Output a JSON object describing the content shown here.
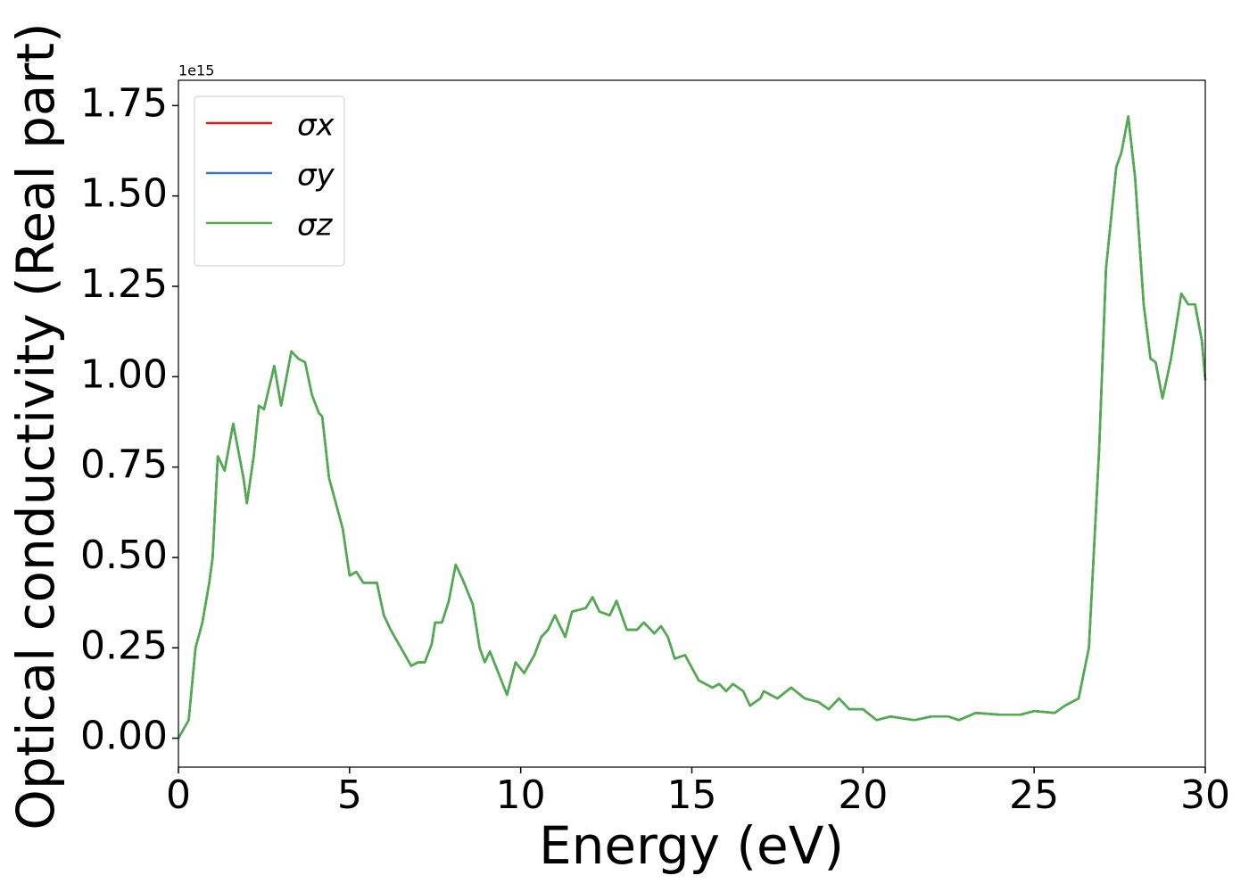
{
  "chart_data": {
    "type": "line",
    "xlabel": "Energy (eV)",
    "ylabel": "Optical conductivity (Real part)",
    "offset_text": "1e15",
    "x": [
      0,
      0.3,
      0.5,
      0.7,
      0.9,
      1.0,
      1.15,
      1.35,
      1.6,
      1.9,
      2.0,
      2.2,
      2.35,
      2.5,
      2.8,
      3.0,
      3.3,
      3.5,
      3.7,
      3.9,
      4.1,
      4.2,
      4.4,
      4.8,
      5.0,
      5.2,
      5.4,
      5.6,
      5.8,
      6.0,
      6.2,
      6.5,
      6.8,
      7.0,
      7.2,
      7.4,
      7.5,
      7.7,
      7.9,
      8.1,
      8.3,
      8.6,
      8.8,
      8.95,
      9.1,
      9.35,
      9.6,
      9.85,
      10.1,
      10.4,
      10.6,
      10.8,
      11.0,
      11.3,
      11.5,
      11.9,
      12.1,
      12.3,
      12.6,
      12.8,
      13.1,
      13.4,
      13.6,
      13.9,
      14.1,
      14.3,
      14.5,
      14.8,
      15.2,
      15.6,
      15.8,
      16.0,
      16.2,
      16.5,
      16.7,
      17.0,
      17.1,
      17.5,
      17.9,
      18.3,
      18.7,
      19.0,
      19.3,
      19.6,
      20.0,
      20.4,
      20.8,
      21.5,
      22.0,
      22.5,
      22.8,
      23.3,
      24.0,
      24.6,
      25.0,
      25.6,
      25.9,
      26.3,
      26.6,
      26.9,
      27.1,
      27.4,
      27.55,
      27.75,
      27.95,
      28.2,
      28.4,
      28.55,
      28.75,
      29.0,
      29.3,
      29.5,
      29.7,
      29.9,
      30
    ],
    "series": [
      {
        "name": "σx",
        "color": "#e41a1c",
        "values": [
          0,
          0.05,
          0.25,
          0.32,
          0.43,
          0.5,
          0.78,
          0.74,
          0.87,
          0.72,
          0.65,
          0.78,
          0.92,
          0.91,
          1.03,
          0.92,
          1.07,
          1.05,
          1.04,
          0.95,
          0.9,
          0.89,
          0.72,
          0.58,
          0.45,
          0.46,
          0.43,
          0.43,
          0.43,
          0.34,
          0.3,
          0.25,
          0.2,
          0.21,
          0.21,
          0.26,
          0.32,
          0.32,
          0.38,
          0.48,
          0.44,
          0.37,
          0.25,
          0.21,
          0.24,
          0.18,
          0.12,
          0.21,
          0.18,
          0.23,
          0.28,
          0.3,
          0.34,
          0.28,
          0.35,
          0.36,
          0.39,
          0.35,
          0.34,
          0.38,
          0.3,
          0.3,
          0.32,
          0.29,
          0.31,
          0.28,
          0.22,
          0.23,
          0.16,
          0.14,
          0.15,
          0.13,
          0.15,
          0.13,
          0.09,
          0.11,
          0.13,
          0.11,
          0.14,
          0.11,
          0.1,
          0.08,
          0.11,
          0.08,
          0.08,
          0.05,
          0.06,
          0.05,
          0.06,
          0.06,
          0.05,
          0.07,
          0.065,
          0.065,
          0.075,
          0.07,
          0.09,
          0.11,
          0.25,
          0.8,
          1.3,
          1.58,
          1.62,
          1.72,
          1.55,
          1.2,
          1.05,
          1.04,
          0.94,
          1.05,
          1.23,
          1.2,
          1.2,
          1.1,
          0.99
        ]
      },
      {
        "name": "σy",
        "color": "#377eb8",
        "values": [
          0,
          0.05,
          0.25,
          0.32,
          0.43,
          0.5,
          0.78,
          0.74,
          0.87,
          0.72,
          0.65,
          0.78,
          0.92,
          0.91,
          1.03,
          0.92,
          1.07,
          1.05,
          1.04,
          0.95,
          0.9,
          0.89,
          0.72,
          0.58,
          0.45,
          0.46,
          0.43,
          0.43,
          0.43,
          0.34,
          0.3,
          0.25,
          0.2,
          0.21,
          0.21,
          0.26,
          0.32,
          0.32,
          0.38,
          0.48,
          0.44,
          0.37,
          0.25,
          0.21,
          0.24,
          0.18,
          0.12,
          0.21,
          0.18,
          0.23,
          0.28,
          0.3,
          0.34,
          0.28,
          0.35,
          0.36,
          0.39,
          0.35,
          0.34,
          0.38,
          0.3,
          0.3,
          0.32,
          0.29,
          0.31,
          0.28,
          0.22,
          0.23,
          0.16,
          0.14,
          0.15,
          0.13,
          0.15,
          0.13,
          0.09,
          0.11,
          0.13,
          0.11,
          0.14,
          0.11,
          0.1,
          0.08,
          0.11,
          0.08,
          0.08,
          0.05,
          0.06,
          0.05,
          0.06,
          0.06,
          0.05,
          0.07,
          0.065,
          0.065,
          0.075,
          0.07,
          0.09,
          0.11,
          0.25,
          0.8,
          1.3,
          1.58,
          1.62,
          1.72,
          1.55,
          1.2,
          1.05,
          1.04,
          0.94,
          1.05,
          1.23,
          1.2,
          1.2,
          1.1,
          0.99
        ]
      },
      {
        "name": "σz",
        "color": "#4daf4a",
        "values": [
          0,
          0.05,
          0.25,
          0.32,
          0.43,
          0.5,
          0.78,
          0.74,
          0.87,
          0.72,
          0.65,
          0.78,
          0.92,
          0.91,
          1.03,
          0.92,
          1.07,
          1.05,
          1.04,
          0.95,
          0.9,
          0.89,
          0.72,
          0.58,
          0.45,
          0.46,
          0.43,
          0.43,
          0.43,
          0.34,
          0.3,
          0.25,
          0.2,
          0.21,
          0.21,
          0.26,
          0.32,
          0.32,
          0.38,
          0.48,
          0.44,
          0.37,
          0.25,
          0.21,
          0.24,
          0.18,
          0.12,
          0.21,
          0.18,
          0.23,
          0.28,
          0.3,
          0.34,
          0.28,
          0.35,
          0.36,
          0.39,
          0.35,
          0.34,
          0.38,
          0.3,
          0.3,
          0.32,
          0.29,
          0.31,
          0.28,
          0.22,
          0.23,
          0.16,
          0.14,
          0.15,
          0.13,
          0.15,
          0.13,
          0.09,
          0.11,
          0.13,
          0.11,
          0.14,
          0.11,
          0.1,
          0.08,
          0.11,
          0.08,
          0.08,
          0.05,
          0.06,
          0.05,
          0.06,
          0.06,
          0.05,
          0.07,
          0.065,
          0.065,
          0.075,
          0.07,
          0.09,
          0.11,
          0.25,
          0.8,
          1.3,
          1.58,
          1.62,
          1.72,
          1.55,
          1.2,
          1.05,
          1.04,
          0.94,
          1.05,
          1.23,
          1.2,
          1.2,
          1.1,
          0.99
        ]
      }
    ],
    "xlim": [
      0,
      30
    ],
    "xticks": [
      0,
      5,
      10,
      15,
      20,
      25,
      30
    ],
    "ylim": [
      -0.08,
      1.82
    ],
    "yticks": [
      {
        "value": 0,
        "label": "0.00"
      },
      {
        "value": 0.25,
        "label": "0.25"
      },
      {
        "value": 0.5,
        "label": "0.50"
      },
      {
        "value": 0.75,
        "label": "0.75"
      },
      {
        "value": 1,
        "label": "1.00"
      },
      {
        "value": 1.25,
        "label": "1.25"
      },
      {
        "value": 1.5,
        "label": "1.50"
      },
      {
        "value": 1.75,
        "label": "1.75"
      }
    ],
    "grid": false,
    "legend": "upper left"
  }
}
